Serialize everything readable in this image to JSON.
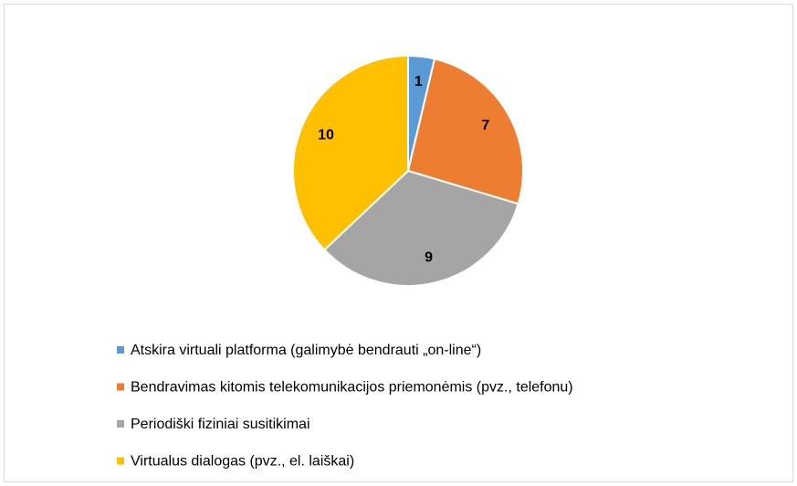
{
  "chart_data": {
    "type": "pie",
    "categories": [
      "Atskira virtuali platforma (galimybė bendrauti „on-line“)",
      "Bendravimas kitomis telekomunikacijos priemonėmis (pvz., telefonu)",
      "Periodiški fiziniai susitikimai",
      "Virtualus dialogas (pvz., el. laiškai)"
    ],
    "values": [
      1,
      7,
      9,
      10
    ],
    "colors": [
      "#5b9bd5",
      "#ed7d31",
      "#a5a5a5",
      "#ffc000"
    ]
  }
}
